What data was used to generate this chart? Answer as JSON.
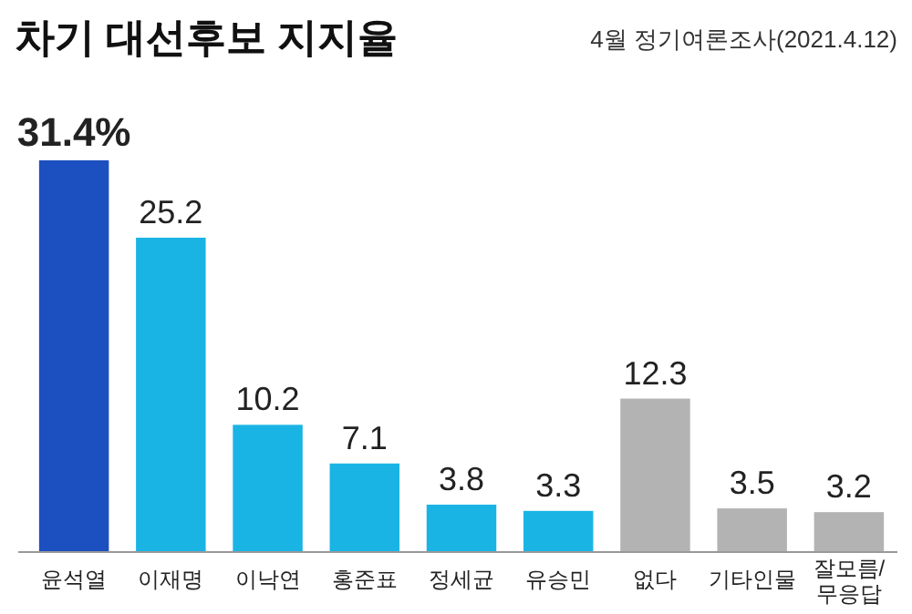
{
  "chart_data": {
    "type": "bar",
    "title": "차기 대선후보 지지율",
    "subtitle": "4월 정기여론조사(2021.4.12)",
    "categories": [
      "윤석열",
      "이재명",
      "이낙연",
      "홍준표",
      "정세균",
      "유승민",
      "없다",
      "기타인물",
      "잘모름/무응답"
    ],
    "values": [
      31.4,
      25.2,
      10.2,
      7.1,
      3.8,
      3.3,
      12.3,
      3.5,
      3.2
    ],
    "value_labels": [
      "31.4%",
      "25.2",
      "10.2",
      "7.1",
      "3.8",
      "3.3",
      "12.3",
      "3.5",
      "3.2"
    ],
    "colors": [
      "#1c4fc0",
      "#1ab4e4",
      "#1ab4e4",
      "#1ab4e4",
      "#1ab4e4",
      "#1ab4e4",
      "#b3b3b3",
      "#b3b3b3",
      "#b3b3b3"
    ]
  }
}
